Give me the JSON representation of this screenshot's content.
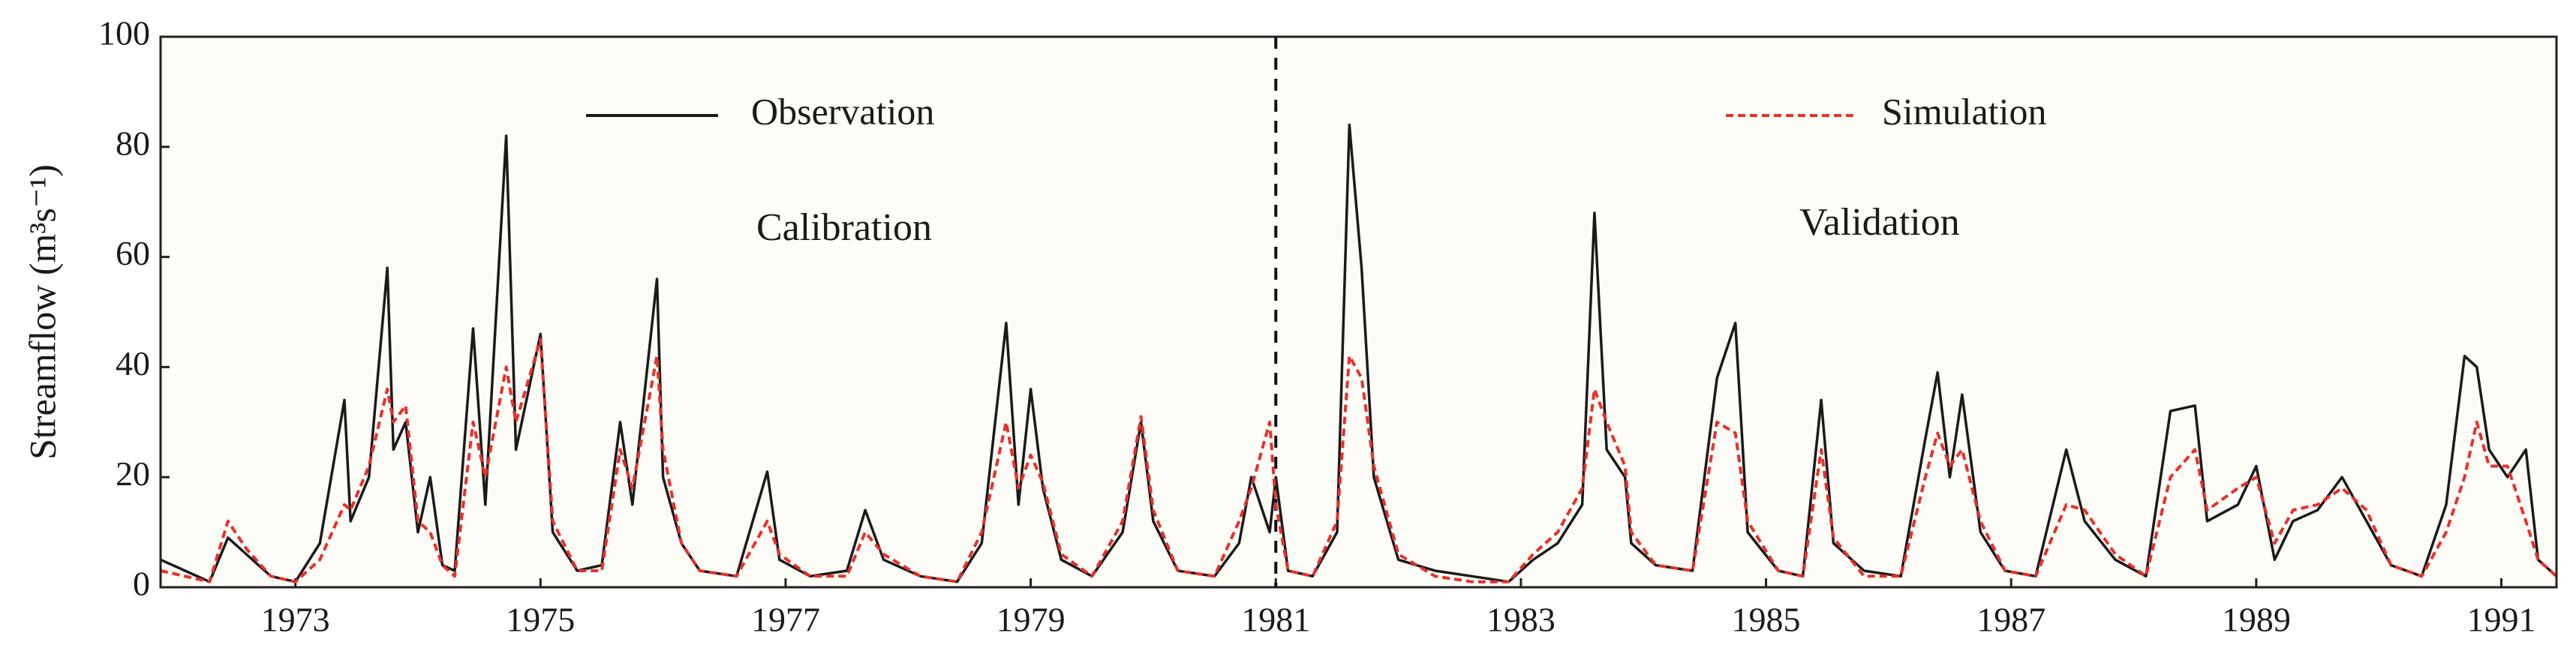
{
  "chart_data": {
    "type": "line",
    "y_label": "Streamflow (m³s⁻¹)",
    "annotations": [
      "Calibration",
      "Validation"
    ],
    "xlim": [
      1971.9,
      1991.45
    ],
    "ylim": [
      0,
      100
    ],
    "xticks": [
      1973,
      1975,
      1977,
      1979,
      1981,
      1983,
      1985,
      1987,
      1989,
      1991
    ],
    "yticks": [
      0,
      20,
      40,
      60,
      80,
      100
    ],
    "x": [
      1971.9,
      1972.1,
      1972.3,
      1972.45,
      1972.6,
      1972.8,
      1973.0,
      1973.2,
      1973.4,
      1973.45,
      1973.6,
      1973.75,
      1973.8,
      1973.9,
      1974.0,
      1974.1,
      1974.2,
      1974.3,
      1974.45,
      1974.55,
      1974.72,
      1974.8,
      1975.0,
      1975.1,
      1975.3,
      1975.5,
      1975.65,
      1975.75,
      1975.95,
      1976.0,
      1976.15,
      1976.3,
      1976.6,
      1976.85,
      1976.95,
      1977.2,
      1977.5,
      1977.65,
      1977.8,
      1978.1,
      1978.4,
      1978.6,
      1978.8,
      1978.9,
      1979.0,
      1979.1,
      1979.25,
      1979.5,
      1979.75,
      1979.9,
      1980.0,
      1980.2,
      1980.5,
      1980.7,
      1980.8,
      1980.95,
      1981.0,
      1981.1,
      1981.3,
      1981.5,
      1981.6,
      1981.7,
      1981.8,
      1982.0,
      1982.3,
      1982.6,
      1982.9,
      1983.1,
      1983.3,
      1983.5,
      1983.6,
      1983.7,
      1983.85,
      1983.9,
      1984.1,
      1984.4,
      1984.6,
      1984.75,
      1984.85,
      1985.1,
      1985.3,
      1985.45,
      1985.55,
      1985.8,
      1986.1,
      1986.3,
      1986.4,
      1986.5,
      1986.6,
      1986.75,
      1986.95,
      1987.2,
      1987.45,
      1987.6,
      1987.85,
      1988.1,
      1988.3,
      1988.5,
      1988.6,
      1988.85,
      1989.0,
      1989.15,
      1989.3,
      1989.5,
      1989.7,
      1989.9,
      1990.1,
      1990.35,
      1990.55,
      1990.7,
      1990.8,
      1990.9,
      1991.05,
      1991.2,
      1991.3,
      1991.45
    ],
    "series": [
      {
        "name": "Observation",
        "color": "#1a1a1a",
        "dash": false,
        "values": [
          5,
          3,
          1,
          9,
          6,
          2,
          1,
          8,
          34,
          12,
          20,
          58,
          25,
          30,
          10,
          20,
          4,
          3,
          47,
          15,
          82,
          25,
          46,
          10,
          3,
          4,
          30,
          15,
          56,
          20,
          8,
          3,
          2,
          21,
          5,
          2,
          3,
          14,
          5,
          2,
          1,
          8,
          48,
          15,
          36,
          18,
          5,
          2,
          10,
          30,
          12,
          3,
          2,
          8,
          20,
          10,
          20,
          3,
          2,
          10,
          84,
          58,
          20,
          5,
          3,
          2,
          1,
          5,
          8,
          15,
          68,
          25,
          20,
          8,
          4,
          3,
          38,
          48,
          10,
          3,
          2,
          34,
          8,
          3,
          2,
          27,
          39,
          20,
          35,
          10,
          3,
          2,
          25,
          12,
          5,
          2,
          32,
          33,
          12,
          15,
          22,
          5,
          12,
          14,
          20,
          12,
          4,
          2,
          15,
          42,
          40,
          25,
          20,
          25,
          5,
          2
        ]
      },
      {
        "name": "Simulation",
        "color": "#e8302a",
        "dash": true,
        "values": [
          3,
          2,
          1,
          12,
          7,
          2,
          1,
          5,
          15,
          14,
          22,
          36,
          30,
          33,
          12,
          10,
          4,
          2,
          30,
          20,
          40,
          30,
          45,
          12,
          3,
          3,
          25,
          18,
          42,
          25,
          8,
          3,
          2,
          12,
          6,
          2,
          2,
          10,
          6,
          2,
          1,
          10,
          30,
          18,
          24,
          19,
          6,
          2,
          12,
          31,
          14,
          3,
          2,
          12,
          18,
          30,
          15,
          3,
          2,
          12,
          42,
          38,
          22,
          6,
          2,
          1,
          1,
          6,
          10,
          18,
          36,
          30,
          22,
          10,
          4,
          3,
          30,
          28,
          12,
          3,
          2,
          25,
          9,
          2,
          2,
          20,
          28,
          22,
          25,
          12,
          3,
          2,
          15,
          14,
          6,
          2,
          20,
          25,
          14,
          18,
          20,
          8,
          14,
          15,
          18,
          14,
          4,
          2,
          10,
          20,
          30,
          22,
          22,
          12,
          5,
          2
        ]
      }
    ]
  }
}
